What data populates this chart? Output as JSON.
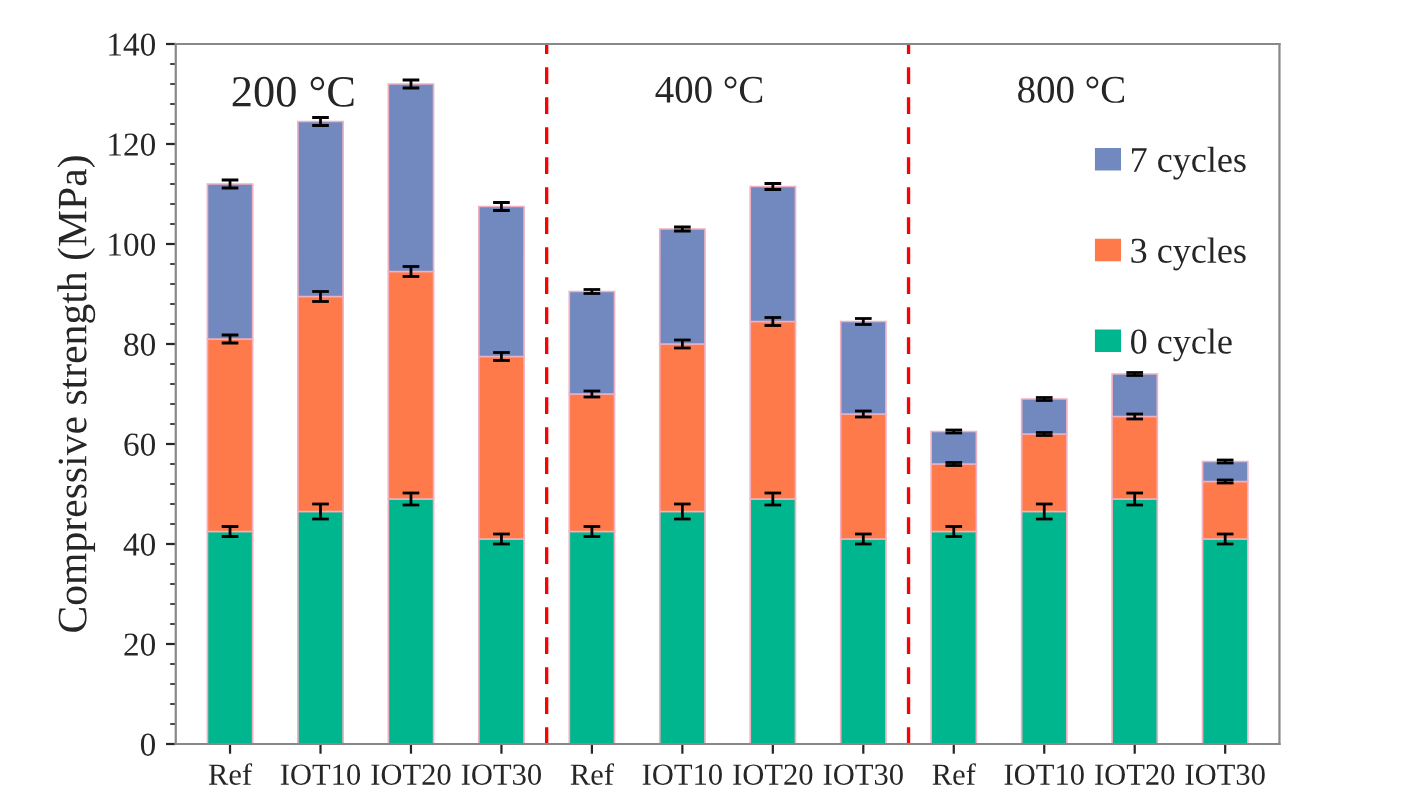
{
  "chart_data": {
    "type": "bar",
    "stacked": true,
    "ylabel": "Compressive strength (MPa)",
    "categories": [
      "Ref",
      "IOT10",
      "IOT20",
      "IOT30",
      "Ref",
      "IOT10",
      "IOT20",
      "IOT30",
      "Ref",
      "IOT10",
      "IOT20",
      "IOT30"
    ],
    "series": [
      {
        "name": "0 cycle",
        "color": "#00b68f",
        "values": [
          42.5,
          46.5,
          49,
          41,
          42.5,
          46.5,
          49,
          41,
          42.5,
          46.5,
          49,
          41
        ],
        "errors": [
          1,
          1.5,
          1.2,
          1,
          1,
          1.5,
          1.2,
          1,
          1,
          1.5,
          1.2,
          1
        ]
      },
      {
        "name": "3 cycles",
        "color": "#ff7a4a",
        "values": [
          38.5,
          43,
          45.5,
          36.5,
          27.5,
          33.5,
          35.5,
          25,
          13.5,
          15.5,
          16.5,
          11.5
        ],
        "errors": [
          0.8,
          1,
          1,
          0.8,
          0.6,
          0.8,
          0.8,
          0.6,
          0.3,
          0.3,
          0.5,
          0.3
        ]
      },
      {
        "name": "7 cycles",
        "color": "#7289bf",
        "values": [
          31,
          35,
          37.5,
          30,
          20.5,
          23,
          27,
          18.5,
          6.5,
          7,
          8.5,
          4
        ],
        "errors": [
          0.8,
          0.8,
          0.8,
          0.8,
          0.4,
          0.4,
          0.6,
          0.6,
          0.3,
          0.3,
          0.3,
          0.3
        ]
      }
    ],
    "ylim": [
      0,
      140
    ],
    "yticks": [
      0,
      20,
      40,
      60,
      80,
      100,
      120,
      140
    ],
    "annotations": [
      "200 °C",
      "400 °C",
      "800 °C"
    ],
    "legend": "right",
    "grid": false
  }
}
